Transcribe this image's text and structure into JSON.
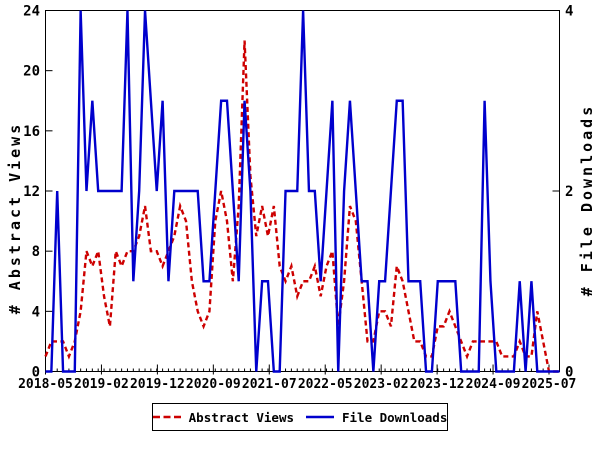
{
  "chart_data": {
    "type": "line",
    "title": "",
    "x_axis": {
      "start": "2018-05",
      "end": "2025-07",
      "interval": "monthly",
      "n_points": 87,
      "tick_labels": [
        "2018-05",
        "2019-02",
        "2019-12",
        "2020-09",
        "2021-07",
        "2022-05",
        "2023-02",
        "2023-12",
        "2024-09",
        "2025-07"
      ]
    },
    "y_left": {
      "label": "# Abstract Views",
      "min": 0,
      "max": 24,
      "ticks": [
        0,
        4,
        8,
        12,
        16,
        20,
        24
      ]
    },
    "y_right": {
      "label": "# File Downloads",
      "min": 0,
      "max": 4,
      "ticks": [
        0,
        2,
        4
      ]
    },
    "series": [
      {
        "name": "Abstract Views",
        "axis": "left",
        "color": "#cd0000",
        "style": "dashed",
        "values": [
          1,
          2,
          2,
          2,
          1,
          2,
          4,
          8,
          7,
          8,
          5,
          3,
          8,
          7,
          8,
          8,
          9,
          11,
          8,
          8,
          7,
          8,
          9,
          11,
          10,
          6,
          4,
          3,
          4,
          10,
          12,
          10,
          6,
          11,
          22,
          13,
          9,
          11,
          9,
          11,
          7,
          6,
          7,
          5,
          6,
          6,
          7,
          5,
          7,
          8,
          3,
          6,
          11,
          10,
          6,
          2,
          2,
          4,
          4,
          3,
          7,
          6,
          4,
          2,
          2,
          1,
          1,
          3,
          3,
          4,
          3,
          2,
          1,
          2,
          2,
          2,
          2,
          2,
          1,
          1,
          1,
          2,
          1,
          1,
          4,
          2,
          0
        ]
      },
      {
        "name": "File Downloads",
        "axis": "right",
        "color": "#0000cd",
        "style": "solid",
        "values": [
          0,
          0,
          2,
          0,
          0,
          0,
          4,
          2,
          3,
          2,
          2,
          2,
          2,
          2,
          4,
          1,
          2,
          4,
          3,
          2,
          3,
          1,
          2,
          2,
          2,
          2,
          2,
          1,
          1,
          2,
          3,
          3,
          2,
          1,
          3,
          2,
          0,
          1,
          1,
          0,
          0,
          2,
          2,
          2,
          4,
          2,
          2,
          1,
          2,
          3,
          0,
          2,
          3,
          2,
          1,
          1,
          0,
          1,
          1,
          2,
          3,
          3,
          1,
          1,
          1,
          0,
          0,
          1,
          1,
          1,
          1,
          0,
          0,
          0,
          0,
          3,
          1,
          0,
          0,
          0,
          0,
          1,
          0,
          1,
          0,
          0,
          0
        ]
      }
    ],
    "legend": {
      "position": "bottom-center",
      "border": true
    }
  },
  "colors": {
    "background": "#ffffff",
    "frame": "#000000",
    "text": "#000000"
  }
}
